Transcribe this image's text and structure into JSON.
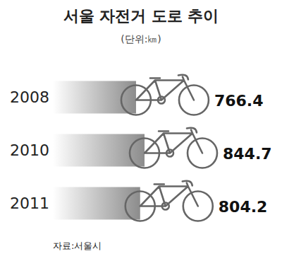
{
  "chart_data": {
    "type": "bar",
    "title": "서울 자전거 도로 추이",
    "subtitle": "(단위:㎞)",
    "source": "자료:서울시",
    "categories": [
      "2008",
      "2010",
      "2011"
    ],
    "values": [
      766.4,
      844.7,
      804.2
    ],
    "color": "#8c8c8c",
    "orientation": "horizontal",
    "data_labels": true,
    "tick_labels": "y"
  }
}
